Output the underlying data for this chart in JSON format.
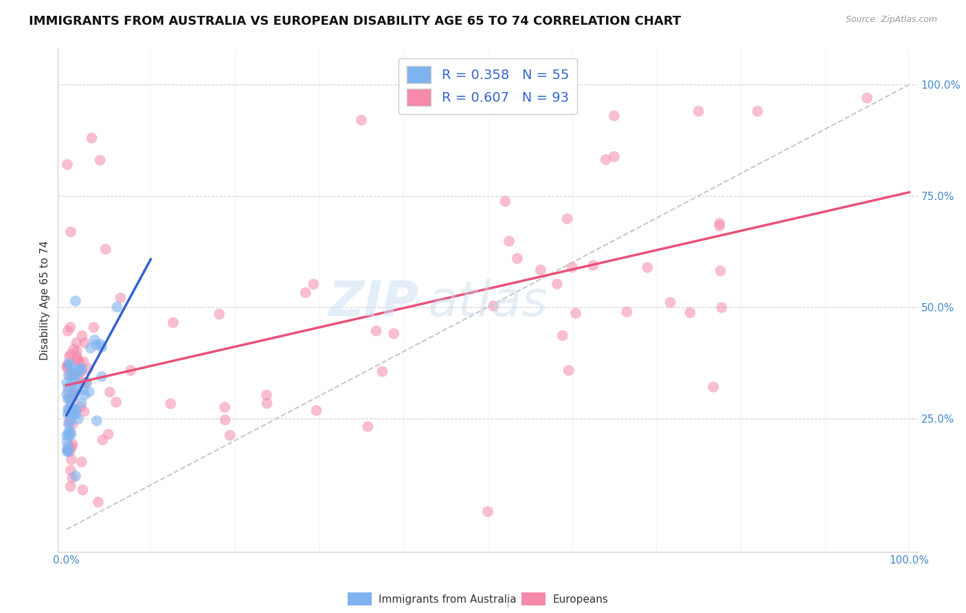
{
  "title": "IMMIGRANTS FROM AUSTRALIA VS EUROPEAN DISABILITY AGE 65 TO 74 CORRELATION CHART",
  "source": "Source: ZipAtlas.com",
  "ylabel": "Disability Age 65 to 74",
  "watermark_zip": "ZIP",
  "watermark_atlas": "atlas",
  "blue_R": 0.358,
  "blue_N": 55,
  "pink_R": 0.607,
  "pink_N": 93,
  "blue_scatter_color": "#7fb3f0",
  "pink_scatter_color": "#f58aaa",
  "blue_line_color": "#3060d0",
  "pink_line_color": "#e8507a",
  "dashed_line_color": "#c8c8c8",
  "title_fontsize": 13,
  "axis_label_fontsize": 11,
  "tick_label_fontsize": 11,
  "background_color": "#ffffff"
}
